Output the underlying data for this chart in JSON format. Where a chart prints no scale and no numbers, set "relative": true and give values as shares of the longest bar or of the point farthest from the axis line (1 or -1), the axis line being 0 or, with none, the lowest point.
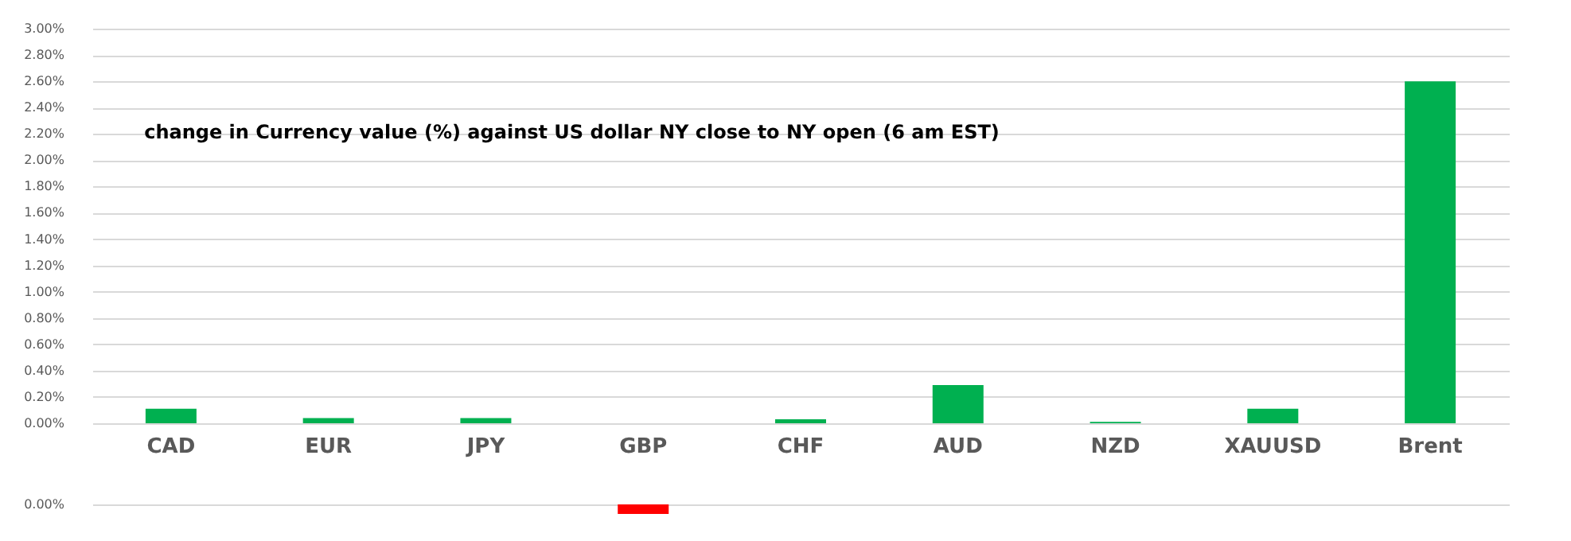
{
  "chart_data": [
    {
      "type": "bar",
      "title": "change in Currency value (%)  against US dollar NY  close to NY open (6 am EST)",
      "categories": [
        "CAD",
        "EUR",
        "JPY",
        "GBP",
        "CHF",
        "AUD",
        "NZD",
        "XAUUSD",
        "Brent"
      ],
      "values": [
        0.11,
        0.04,
        0.04,
        0,
        0.03,
        0.29,
        0.01,
        0.11,
        2.6
      ],
      "color": "#00b050",
      "ylim": [
        0,
        3
      ],
      "yticks": [
        {
          "value": 0,
          "label": "0.00%"
        },
        {
          "value": 0.2,
          "label": "0.20%"
        },
        {
          "value": 0.4,
          "label": "0.40%"
        },
        {
          "value": 0.6,
          "label": "0.60%"
        },
        {
          "value": 0.8,
          "label": "0.80%"
        },
        {
          "value": 1.0,
          "label": "1.00%"
        },
        {
          "value": 1.2,
          "label": "1.20%"
        },
        {
          "value": 1.4,
          "label": "1.40%"
        },
        {
          "value": 1.6,
          "label": "1.60%"
        },
        {
          "value": 1.8,
          "label": "1.80%"
        },
        {
          "value": 2.0,
          "label": "2.00%"
        },
        {
          "value": 2.2,
          "label": "2.20%"
        },
        {
          "value": 2.4,
          "label": "2.40%"
        },
        {
          "value": 2.6,
          "label": "2.60%"
        },
        {
          "value": 2.8,
          "label": "2.80%"
        },
        {
          "value": 3.0,
          "label": "3.00%"
        }
      ],
      "grid": "y"
    },
    {
      "type": "bar",
      "relative": true,
      "categories": [
        null,
        null,
        null,
        null,
        null,
        null,
        null,
        null,
        null
      ],
      "values": [
        null,
        null,
        null,
        -1,
        null,
        null,
        null,
        null,
        null
      ],
      "colors": [
        "#00b050",
        "#00b050",
        "#00b050",
        "#ff0000",
        "#00b050",
        "#00b050",
        "#00b050",
        "#00b050",
        "#00b050"
      ],
      "ref_lines": [
        {
          "axis": "y",
          "value": 0,
          "label": "0.00%",
          "color": "#d9d9d9"
        }
      ]
    }
  ]
}
